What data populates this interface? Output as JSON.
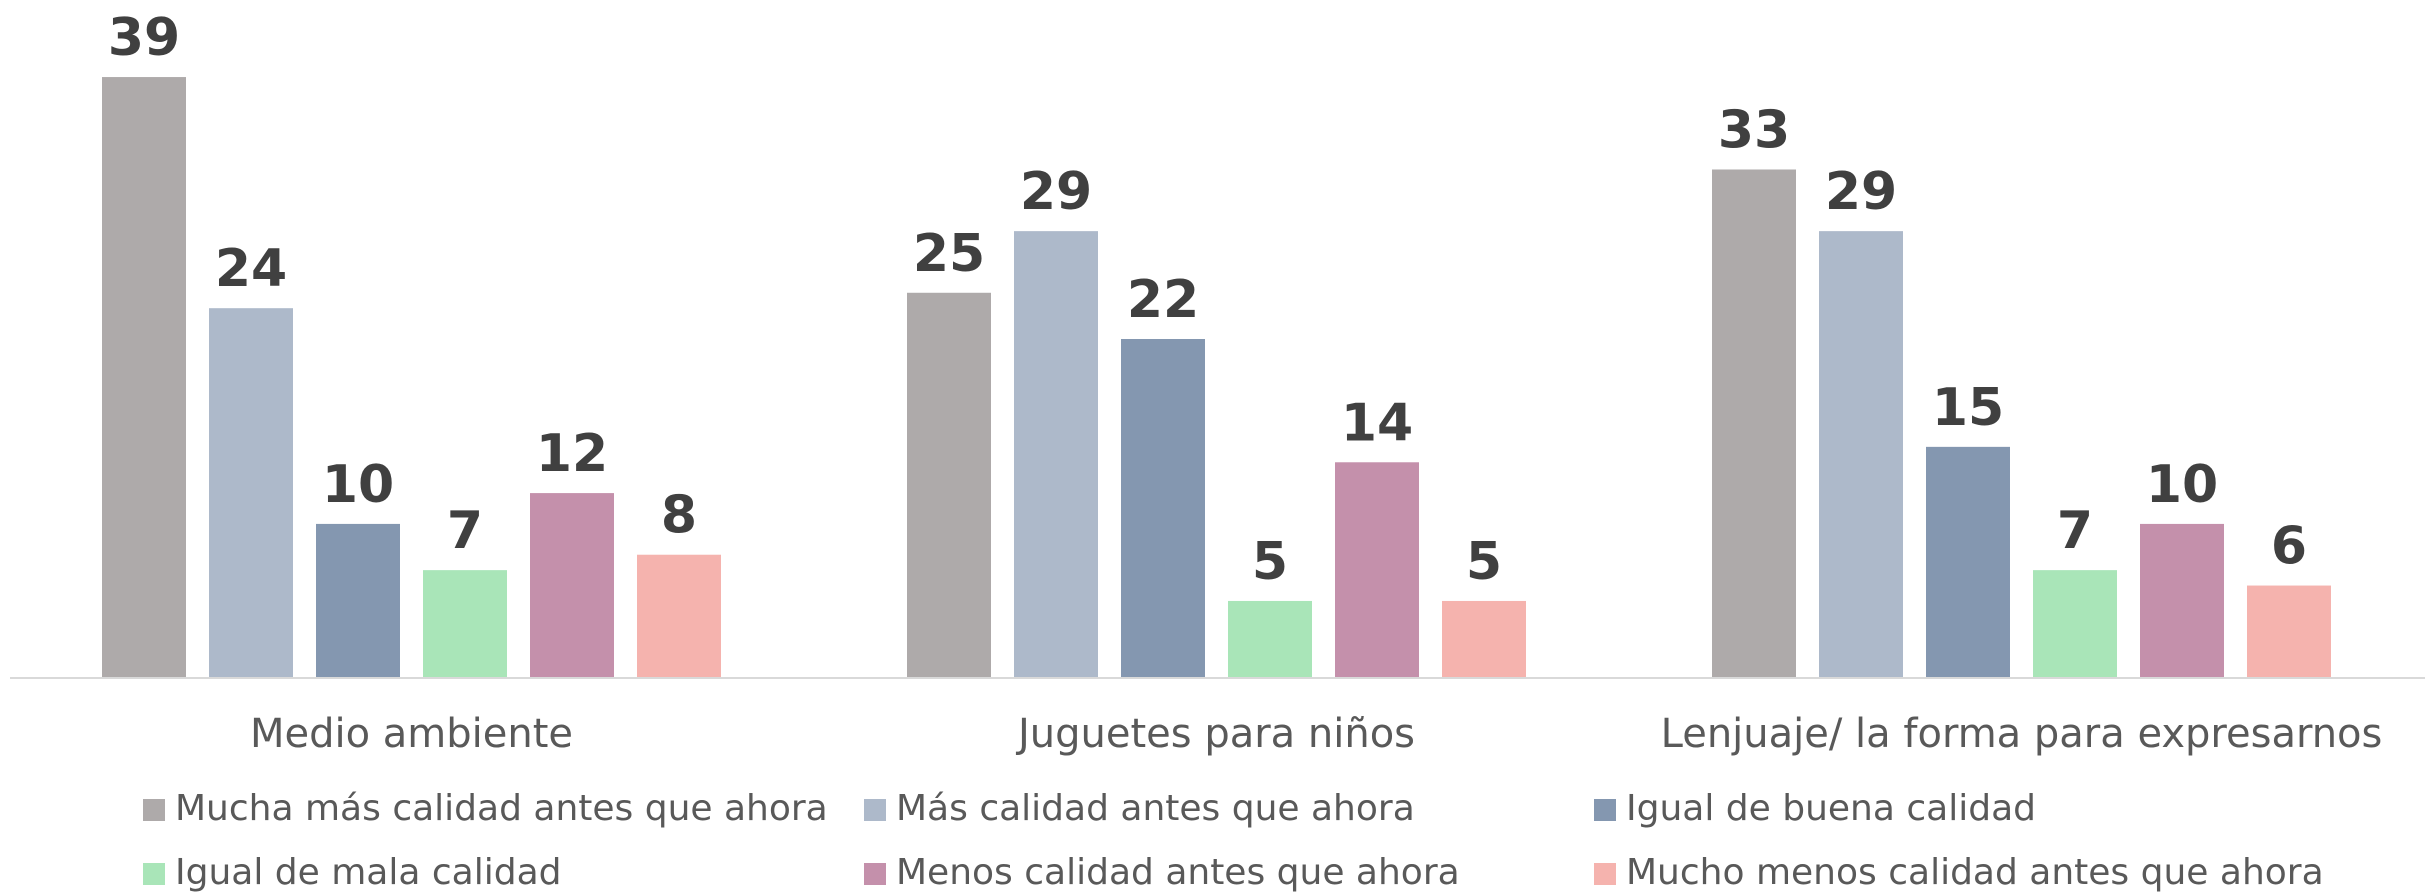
{
  "chart_data": {
    "type": "bar",
    "categories": [
      "Medio ambiente",
      "Juguetes para niños",
      "Lenjuaje/ la forma para expresarnos"
    ],
    "series": [
      {
        "name": "Mucha más calidad antes que ahora",
        "color": "#aeaaaa",
        "values": [
          39,
          25,
          33
        ]
      },
      {
        "name": "Más calidad antes que ahora",
        "color": "#adb9ca",
        "values": [
          24,
          29,
          29
        ]
      },
      {
        "name": "Igual de buena calidad",
        "color": "#8497b0",
        "values": [
          10,
          22,
          15
        ]
      },
      {
        "name": "Igual de mala calidad",
        "color": "#a9e5b8",
        "values": [
          7,
          5,
          7
        ]
      },
      {
        "name": "Menos calidad antes que ahora",
        "color": "#c490ab",
        "values": [
          12,
          14,
          10
        ]
      },
      {
        "name": "Mucho menos calidad antes que ahora",
        "color": "#f5b3ae",
        "values": [
          8,
          5,
          6
        ]
      }
    ],
    "ylim": [
      0,
      44
    ]
  }
}
